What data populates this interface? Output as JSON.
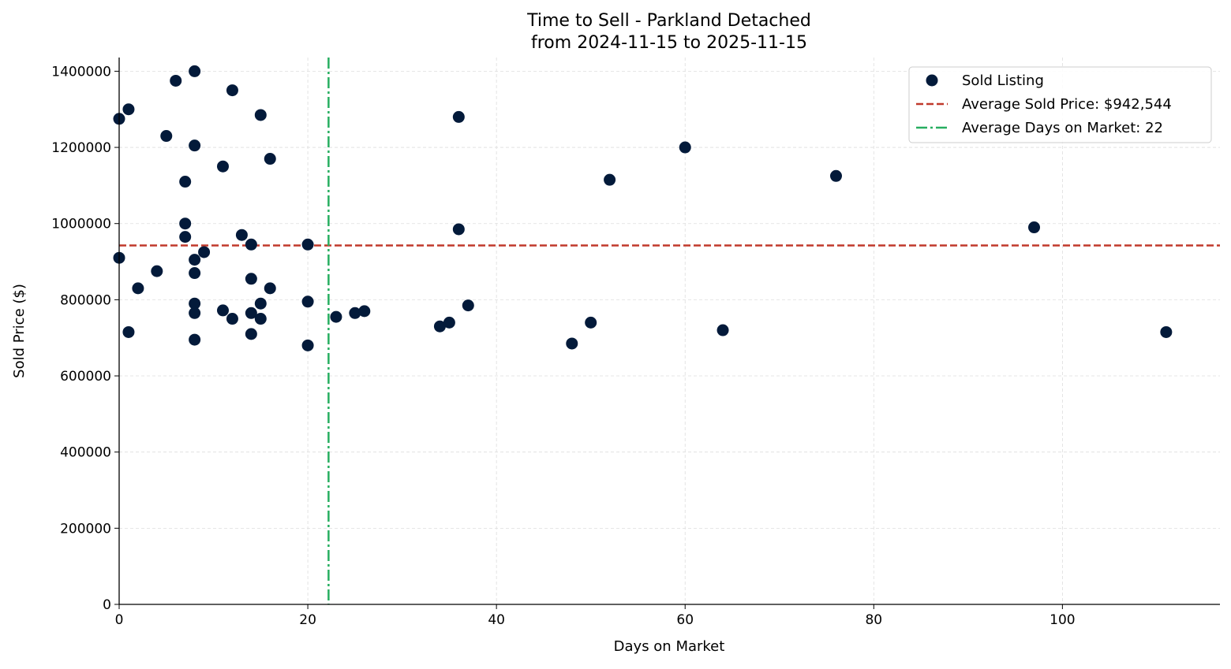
{
  "chart_data": {
    "type": "scatter",
    "title": "Time to Sell - Parkland Detached",
    "subtitle": "from 2024-11-15 to 2025-11-15",
    "xlabel": "Days on Market",
    "ylabel": "Sold Price ($)",
    "xlim": [
      0,
      116.7
    ],
    "ylim": [
      0,
      1436000
    ],
    "xticks": [
      0,
      20,
      40,
      60,
      80,
      100
    ],
    "yticks": [
      0,
      200000,
      400000,
      600000,
      800000,
      1000000,
      1200000,
      1400000
    ],
    "grid": true,
    "legend_position": "top-right",
    "colors": {
      "points": "#031a3a",
      "avg_price": "#c0392b",
      "avg_days": "#27ae60"
    },
    "series": [
      {
        "name": "Sold Listing",
        "points": [
          [
            0,
            1275000
          ],
          [
            1,
            1300000
          ],
          [
            5,
            1230000
          ],
          [
            6,
            1375000
          ],
          [
            8,
            1400000
          ],
          [
            12,
            1350000
          ],
          [
            15,
            1285000
          ],
          [
            8,
            1205000
          ],
          [
            11,
            1150000
          ],
          [
            16,
            1170000
          ],
          [
            7,
            1110000
          ],
          [
            7,
            1000000
          ],
          [
            7,
            965000
          ],
          [
            13,
            970000
          ],
          [
            14,
            945000
          ],
          [
            20,
            945000
          ],
          [
            0,
            910000
          ],
          [
            8,
            905000
          ],
          [
            9,
            925000
          ],
          [
            4,
            875000
          ],
          [
            8,
            870000
          ],
          [
            14,
            855000
          ],
          [
            2,
            830000
          ],
          [
            16,
            830000
          ],
          [
            8,
            790000
          ],
          [
            15,
            790000
          ],
          [
            20,
            795000
          ],
          [
            11,
            772000
          ],
          [
            8,
            765000
          ],
          [
            14,
            765000
          ],
          [
            12,
            750000
          ],
          [
            15,
            750000
          ],
          [
            1,
            715000
          ],
          [
            14,
            710000
          ],
          [
            8,
            695000
          ],
          [
            20,
            680000
          ],
          [
            23,
            755000
          ],
          [
            25,
            765000
          ],
          [
            26,
            770000
          ],
          [
            34,
            730000
          ],
          [
            35,
            740000
          ],
          [
            37,
            785000
          ],
          [
            36,
            1280000
          ],
          [
            36,
            985000
          ],
          [
            48,
            685000
          ],
          [
            50,
            740000
          ],
          [
            52,
            1115000
          ],
          [
            60,
            1200000
          ],
          [
            64,
            720000
          ],
          [
            76,
            1125000
          ],
          [
            97,
            990000
          ],
          [
            111,
            715000
          ]
        ]
      }
    ],
    "reference_lines": [
      {
        "name": "Average Sold Price: $942,544",
        "axis": "y",
        "value": 942544,
        "style": "dashed"
      },
      {
        "name": "Average Days on Market: 22",
        "axis": "x",
        "value": 22.2,
        "style": "dashdot"
      }
    ]
  }
}
